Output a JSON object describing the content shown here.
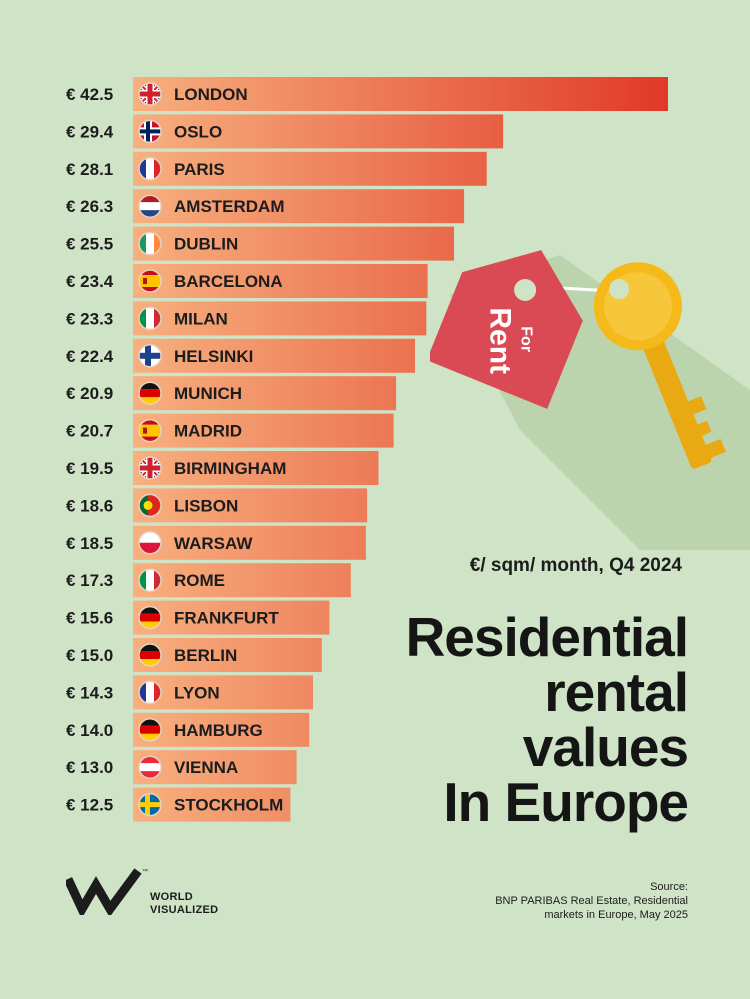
{
  "chart_data": {
    "type": "bar",
    "orientation": "horizontal",
    "currency_prefix": "€",
    "categories": [
      "LONDON",
      "OSLO",
      "PARIS",
      "AMSTERDAM",
      "DUBLIN",
      "BARCELONA",
      "MILAN",
      "HELSINKI",
      "MUNICH",
      "MADRID",
      "BIRMINGHAM",
      "LISBON",
      "WARSAW",
      "ROME",
      "FRANKFURT",
      "BERLIN",
      "LYON",
      "HAMBURG",
      "VIENNA",
      "STOCKHOLM"
    ],
    "values": [
      42.5,
      29.4,
      28.1,
      26.3,
      25.5,
      23.4,
      23.3,
      22.4,
      20.9,
      20.7,
      19.5,
      18.6,
      18.5,
      17.3,
      15.6,
      15.0,
      14.3,
      14.0,
      13.0,
      12.5
    ],
    "value_labels": [
      "€ 42.5",
      "€ 29.4",
      "€ 28.1",
      "€ 26.3",
      "€ 25.5",
      "€ 23.4",
      "€ 23.3",
      "€ 22.4",
      "€ 20.9",
      "€ 20.7",
      "€ 19.5",
      "€ 18.6",
      "€ 18.5",
      "€ 17.3",
      "€ 15.6",
      "€ 15.0",
      "€ 14.3",
      "€ 14.0",
      "€ 13.0",
      "€ 12.5"
    ],
    "flags": [
      "uk",
      "norway",
      "france",
      "netherlands",
      "ireland",
      "spain",
      "italy",
      "finland",
      "germany",
      "spain",
      "uk",
      "portugal",
      "poland",
      "italy",
      "germany",
      "germany",
      "france",
      "germany",
      "austria",
      "sweden"
    ],
    "subtitle": "€/ sqm/ month, Q4 2024",
    "title_lines": [
      "Residential",
      "rental",
      "values",
      "In Europe"
    ],
    "grid": false,
    "legend": "none",
    "bar_gradient": [
      "#f7b07f",
      "#e03a27"
    ]
  },
  "illustration": {
    "tag_text_top": "For",
    "tag_text_bottom": "Rent",
    "icons": [
      "house-tag-icon",
      "key-icon"
    ],
    "colors": {
      "tag": "#d94a55",
      "key": "#f5b919",
      "shadow": "#b8cfa9"
    }
  },
  "source": {
    "label": "Source:",
    "lines": [
      "BNP PARIBAS Real Estate, Residential",
      "markets in Europe, May 2025"
    ]
  },
  "brand": {
    "name_line1": "WORLD",
    "name_line2": "VISUALIZED",
    "tm": "™"
  },
  "colors": {
    "background": "#cfe3c6",
    "text": "#1c1c1c"
  }
}
